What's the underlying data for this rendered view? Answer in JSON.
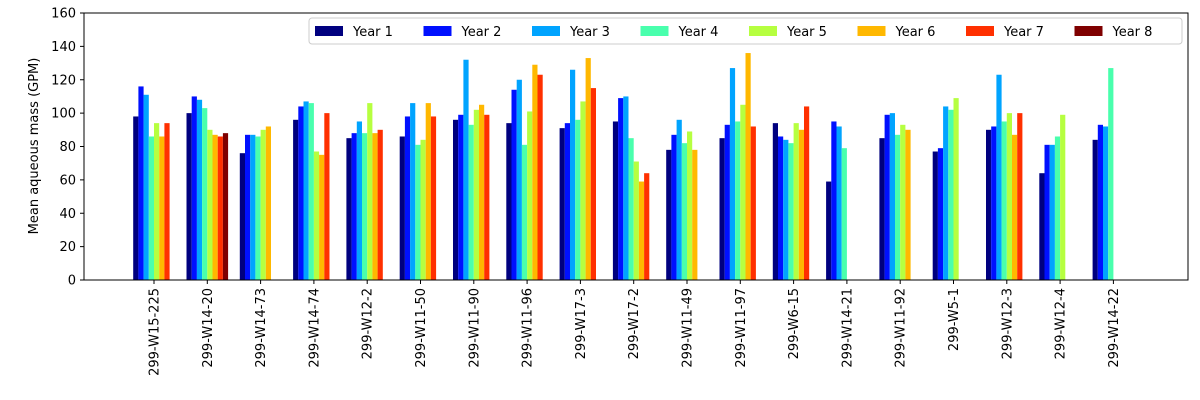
{
  "chart_data": {
    "type": "bar",
    "ylabel": "Mean aqueous mass (GPM)",
    "xlabel": "",
    "title": "",
    "ylim": [
      0,
      160
    ],
    "yticks": [
      0,
      20,
      40,
      60,
      80,
      100,
      120,
      140,
      160
    ],
    "grid": false,
    "legend_position": "top-right",
    "categories": [
      "299-W15-225",
      "299-W14-20",
      "299-W14-73",
      "299-W14-74",
      "299-W12-2",
      "299-W11-50",
      "299-W11-90",
      "299-W11-96",
      "299-W17-3",
      "299-W17-2",
      "299-W11-49",
      "299-W11-97",
      "299-W6-15",
      "299-W14-21",
      "299-W11-92",
      "299-W5-1",
      "299-W12-3",
      "299-W12-4",
      "299-W14-22"
    ],
    "series": [
      {
        "name": "Year 1",
        "color": "#00007f",
        "values": [
          98,
          100,
          76,
          96,
          85,
          86,
          96,
          94,
          91,
          95,
          78,
          85,
          94,
          59,
          85,
          77,
          90,
          64,
          84
        ]
      },
      {
        "name": "Year 2",
        "color": "#0010ff",
        "values": [
          116,
          110,
          87,
          104,
          88,
          98,
          99,
          114,
          94,
          109,
          87,
          93,
          86,
          95,
          99,
          79,
          92,
          81,
          93
        ]
      },
      {
        "name": "Year 3",
        "color": "#00a4ff",
        "values": [
          111,
          108,
          87,
          107,
          95,
          106,
          132,
          120,
          126,
          110,
          96,
          127,
          84,
          92,
          100,
          104,
          123,
          81,
          92
        ]
      },
      {
        "name": "Year 4",
        "color": "#49ffad",
        "values": [
          86,
          103,
          86,
          106,
          88,
          81,
          93,
          81,
          96,
          85,
          82,
          95,
          82,
          79,
          87,
          102,
          95,
          86,
          127
        ]
      },
      {
        "name": "Year 5",
        "color": "#b6ff40",
        "values": [
          94,
          90,
          90,
          77,
          106,
          84,
          102,
          101,
          107,
          71,
          89,
          105,
          94,
          null,
          93,
          109,
          100,
          99,
          null
        ]
      },
      {
        "name": "Year 6",
        "color": "#ffb800",
        "values": [
          86,
          87,
          92,
          75,
          88,
          106,
          105,
          129,
          133,
          59,
          78,
          136,
          90,
          null,
          90,
          null,
          87,
          null,
          null
        ]
      },
      {
        "name": "Year 7",
        "color": "#ff3000",
        "values": [
          94,
          86,
          null,
          100,
          90,
          98,
          99,
          123,
          115,
          64,
          null,
          92,
          104,
          null,
          null,
          null,
          100,
          null,
          null
        ]
      },
      {
        "name": "Year 8",
        "color": "#7f0000",
        "values": [
          null,
          88,
          null,
          null,
          null,
          null,
          null,
          null,
          null,
          null,
          null,
          null,
          null,
          null,
          null,
          null,
          null,
          null,
          null
        ]
      }
    ]
  }
}
